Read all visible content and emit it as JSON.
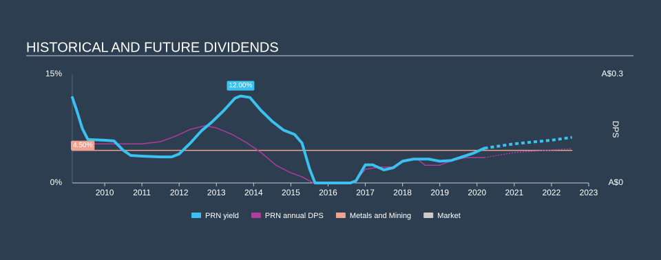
{
  "chart_data": {
    "type": "line",
    "title": "HISTORICAL AND FUTURE DIVIDENDS",
    "y2_label": "DPS",
    "xlim": [
      2009.13,
      2023
    ],
    "xticks": [
      2010,
      2011,
      2012,
      2013,
      2014,
      2015,
      2016,
      2017,
      2018,
      2019,
      2020,
      2021,
      2022,
      2023
    ],
    "ylim": [
      0,
      15
    ],
    "yticks": [
      {
        "value": 0,
        "label": "0%"
      },
      {
        "value": 15,
        "label": "15%"
      }
    ],
    "y2lim": [
      0,
      0.3
    ],
    "y2ticks": [
      {
        "value": 0,
        "label": "A$0"
      },
      {
        "value": 0.3,
        "label": "A$0.3"
      }
    ],
    "series": [
      {
        "name": "PRN yield",
        "color": "#3bc1f0",
        "width": 4,
        "segments": [
          {
            "style": "solid",
            "x": [
              2009.13,
              2009.25,
              2009.4,
              2009.55,
              2010.0,
              2010.25,
              2010.5,
              2010.7,
              2011.0,
              2011.5,
              2011.8,
              2012.0,
              2012.3,
              2012.6,
              2012.9,
              2013.2,
              2013.5,
              2013.65,
              2013.9,
              2014.2,
              2014.5,
              2014.8,
              2015.1,
              2015.3,
              2015.5,
              2015.65,
              2016.0,
              2016.6,
              2016.75,
              2017.0,
              2017.2,
              2017.5,
              2017.75,
              2018.0,
              2018.3,
              2018.7,
              2019.0,
              2019.3,
              2019.6,
              2019.9,
              2020.2
            ],
            "values": [
              11.8,
              10,
              7.5,
              6,
              5.9,
              5.8,
              4.5,
              3.8,
              3.7,
              3.6,
              3.6,
              4.0,
              5.5,
              7.2,
              8.5,
              10,
              11.7,
              12,
              11.8,
              10,
              8.5,
              7.3,
              6.7,
              5.5,
              2,
              0,
              0,
              0,
              0.3,
              2.5,
              2.5,
              1.8,
              2.1,
              3.0,
              3.3,
              3.3,
              3.0,
              3.1,
              3.6,
              4.1,
              4.8
            ]
          },
          {
            "style": "dotted",
            "x": [
              2020.2,
              2021,
              2022,
              2022.55
            ],
            "values": [
              4.8,
              5.4,
              5.9,
              6.3
            ]
          }
        ]
      },
      {
        "name": "PRN annual DPS",
        "color": "#b03c9e",
        "width": 1.5,
        "axis": "y2",
        "segments": [
          {
            "style": "solid",
            "x": [
              2009.13,
              2010.0,
              2011.0,
              2011.5,
              2011.9,
              2012.3,
              2012.7,
              2013.0,
              2013.4,
              2013.8,
              2014.2,
              2014.6,
              2015.0,
              2015.3,
              2015.6,
              2016.7,
              2017.0,
              2017.4,
              2017.8,
              2018.1,
              2018.4,
              2018.6,
              2019.0,
              2019.3,
              2019.7,
              2020.2
            ],
            "values": [
              0.108,
              0.108,
              0.108,
              0.114,
              0.129,
              0.148,
              0.158,
              0.152,
              0.135,
              0.112,
              0.084,
              0.049,
              0.028,
              0.017,
              0,
              0,
              0.038,
              0.044,
              0.044,
              0.065,
              0.066,
              0.049,
              0.049,
              0.061,
              0.07,
              0.07
            ]
          },
          {
            "style": "dotted",
            "x": [
              2020.2,
              2021,
              2022,
              2022.55
            ],
            "values": [
              0.07,
              0.084,
              0.091,
              0.095
            ]
          }
        ]
      },
      {
        "name": "Metals and Mining",
        "color": "#f0a391",
        "width": 1.5,
        "segments": [
          {
            "style": "solid",
            "x": [
              2009.13,
              2022.55
            ],
            "values": [
              4.5,
              4.5
            ]
          }
        ]
      },
      {
        "name": "Market",
        "color": "#cccccc",
        "width": 1.5,
        "segments": []
      }
    ],
    "annotations": [
      {
        "x": 2013.65,
        "value": 12,
        "label": "12.00%",
        "color": "#3bc1f0"
      },
      {
        "x": 2009.13,
        "value": 4.5,
        "label": "4.50%",
        "color": "#f0a391"
      }
    ]
  }
}
